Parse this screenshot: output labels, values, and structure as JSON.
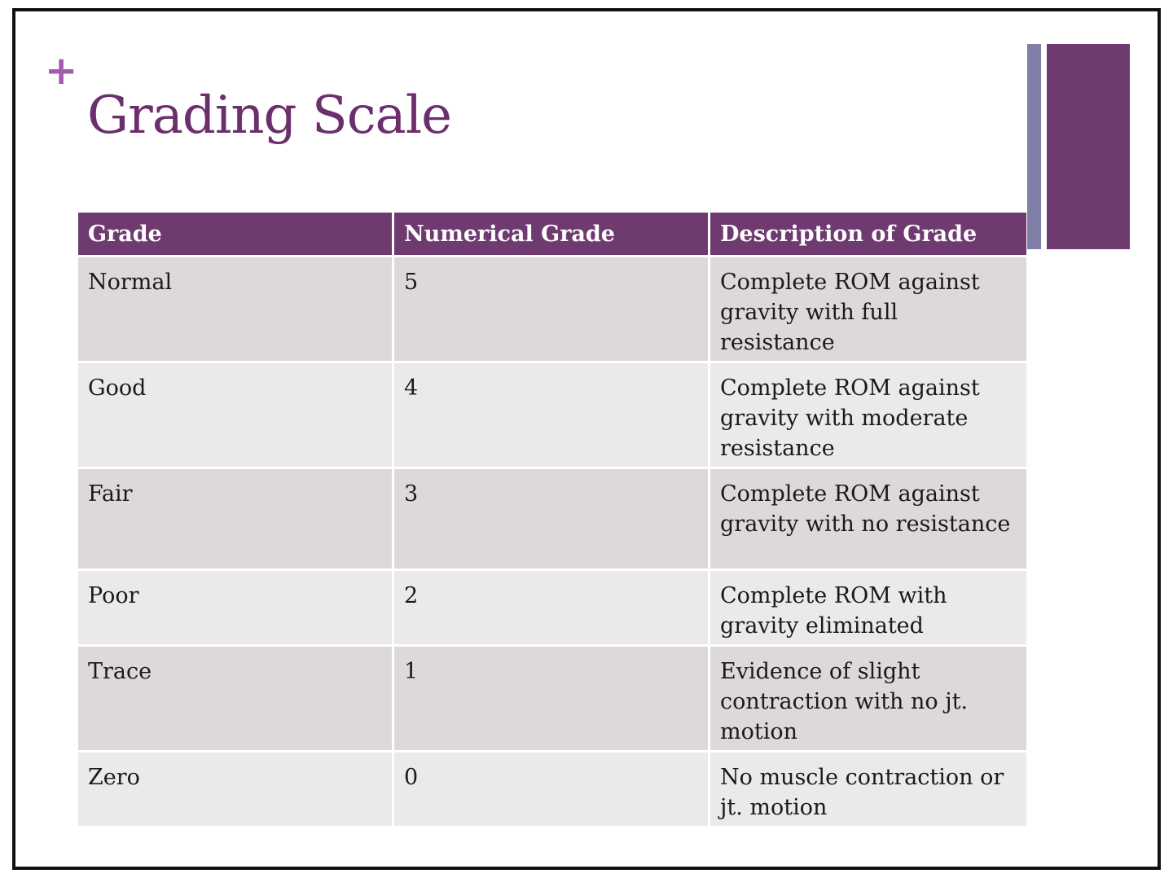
{
  "slide": {
    "title": "Grading Scale",
    "plus_symbol": "+"
  },
  "table": {
    "headers": [
      "Grade",
      "Numerical Grade",
      "Description of Grade"
    ],
    "rows": [
      {
        "grade": "Normal",
        "numerical": "5",
        "description": "Complete ROM against gravity with full resistance"
      },
      {
        "grade": "Good",
        "numerical": "4",
        "description": "Complete ROM against gravity with moderate resistance"
      },
      {
        "grade": "Fair",
        "numerical": "3",
        "description": "Complete ROM against gravity with no resistance"
      },
      {
        "grade": "Poor",
        "numerical": "2",
        "description": "Complete ROM with gravity eliminated"
      },
      {
        "grade": "Trace",
        "numerical": "1",
        "description": "Evidence of slight contraction with no jt. motion"
      },
      {
        "grade": "Zero",
        "numerical": "0",
        "description": "No muscle contraction or jt. motion"
      }
    ]
  },
  "colors": {
    "accent_purple": "#6f3a70",
    "accent_lavender": "#7f7fa8",
    "title_purple": "#6b2f6d",
    "plus_pink": "#a35bb0",
    "row_dark": "#dcd8dc",
    "row_light": "#ebe9eb"
  }
}
